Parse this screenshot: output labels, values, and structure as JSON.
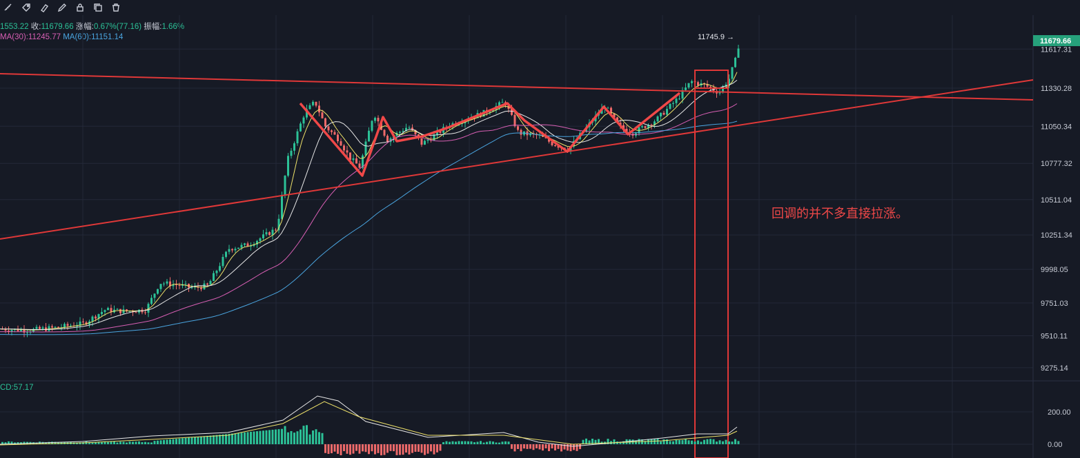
{
  "toolbar": {
    "icons": [
      "ruler-icon",
      "tag-icon",
      "eraser-icon",
      "pencil-icon",
      "lock-icon",
      "copy-icon",
      "delete-icon"
    ]
  },
  "info": {
    "open_val": "1553.22",
    "close_label": "收:",
    "close_val": "11679.66",
    "change_label": "涨幅:",
    "change_val": "0.67%(77.16)",
    "amp_label": "振幅:",
    "amp_val": "1.66%",
    "ma30": "MA(30):11245.77",
    "ma60": "MA(60):11151.14",
    "macd": "CD:57.17"
  },
  "annotation": "回调的并不多直接拉涨。",
  "high_label": "11745.9",
  "colors": {
    "up": "#2cc197",
    "down": "#ef6a6a",
    "bg": "#161a25",
    "grid": "#232838",
    "red": "#e03838"
  },
  "chart_data": {
    "type": "line",
    "price_axis": {
      "ticks": [
        11617.31,
        11330.28,
        11050.34,
        10777.32,
        10511.04,
        10251.34,
        9998.05,
        9751.03,
        9510.11,
        9275.14
      ],
      "tick_labels": [
        "11617.31",
        "11330.28",
        "11050.34",
        "10777.32",
        "10511.04",
        "10251.34",
        "9998.05",
        "9751.03",
        "9510.11",
        "9275.14"
      ],
      "current": 11679.66,
      "current_label": "11679.66",
      "high_marker": 11745.9
    },
    "macd_axis": {
      "ticks": [
        200,
        0
      ],
      "tick_labels": [
        "200.00",
        "0.00"
      ],
      "value": 57.17
    },
    "series": [
      {
        "name": "MA(30)",
        "last": 11245.77,
        "color": "#d85fb4"
      },
      {
        "name": "MA(60)",
        "last": 11151.14,
        "color": "#4aa5e0"
      }
    ],
    "price_path": [
      [
        0,
        9560
      ],
      [
        40,
        9550
      ],
      [
        80,
        9570
      ],
      [
        120,
        9600
      ],
      [
        150,
        9700
      ],
      [
        180,
        9690
      ],
      [
        210,
        9700
      ],
      [
        230,
        9900
      ],
      [
        260,
        9880
      ],
      [
        280,
        9860
      ],
      [
        300,
        9880
      ],
      [
        330,
        10150
      ],
      [
        360,
        10180
      ],
      [
        400,
        10300
      ],
      [
        415,
        10800
      ],
      [
        440,
        11150
      ],
      [
        455,
        11230
      ],
      [
        470,
        11050
      ],
      [
        490,
        10950
      ],
      [
        505,
        10820
      ],
      [
        520,
        10750
      ],
      [
        540,
        11150
      ],
      [
        560,
        10950
      ],
      [
        590,
        11050
      ],
      [
        610,
        10920
      ],
      [
        650,
        11060
      ],
      [
        700,
        11150
      ],
      [
        730,
        11230
      ],
      [
        750,
        11000
      ],
      [
        780,
        10980
      ],
      [
        800,
        10920
      ],
      [
        822,
        10880
      ],
      [
        850,
        11050
      ],
      [
        875,
        11200
      ],
      [
        895,
        11050
      ],
      [
        915,
        11000
      ],
      [
        950,
        11100
      ],
      [
        980,
        11250
      ],
      [
        1000,
        11380
      ],
      [
        1020,
        11350
      ],
      [
        1040,
        11300
      ],
      [
        1055,
        11400
      ],
      [
        1065,
        11550
      ],
      [
        1070,
        11680
      ]
    ]
  }
}
